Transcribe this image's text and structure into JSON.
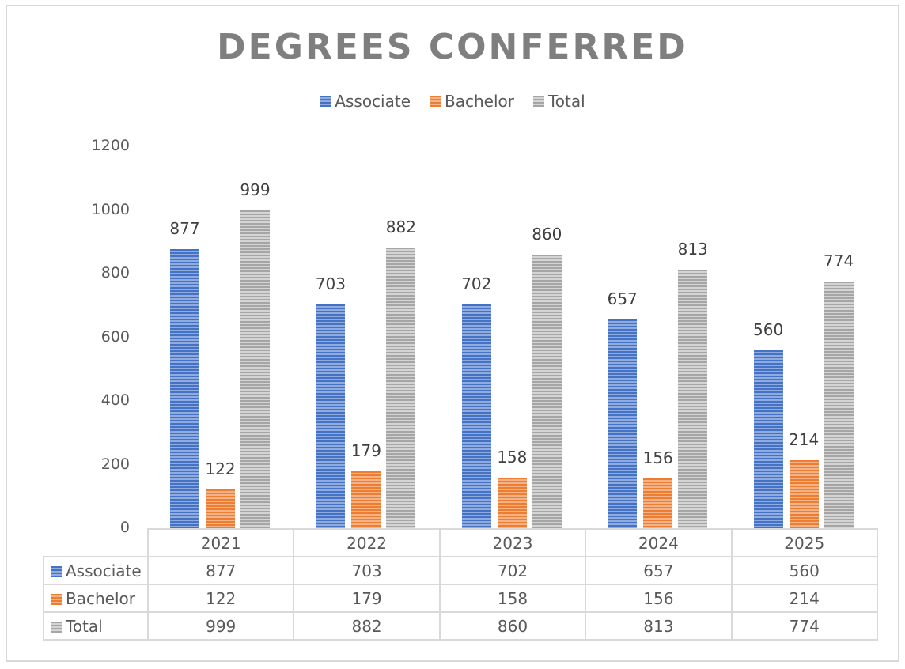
{
  "chart_data": {
    "type": "bar",
    "title": "DEGREES CONFERRED",
    "categories": [
      "2021",
      "2022",
      "2023",
      "2024",
      "2025"
    ],
    "series": [
      {
        "name": "Associate",
        "color": "#4472C4",
        "values": [
          877,
          703,
          702,
          657,
          560
        ]
      },
      {
        "name": "Bachelor",
        "color": "#ED7D31",
        "values": [
          122,
          179,
          158,
          156,
          214
        ]
      },
      {
        "name": "Total",
        "color": "#A5A5A5",
        "values": [
          999,
          882,
          860,
          813,
          774
        ]
      }
    ],
    "xlabel": "",
    "ylabel": "",
    "ylim": [
      0,
      1200
    ],
    "yticks": [
      "0",
      "200",
      "400",
      "600",
      "800",
      "1000",
      "1200"
    ],
    "grid": false,
    "legend_position": "top",
    "data_labels": true,
    "data_table": true
  },
  "legend": [
    {
      "label": "Associate",
      "color": "#4472C4"
    },
    {
      "label": "Bachelor",
      "color": "#ED7D31"
    },
    {
      "label": "Total",
      "color": "#A5A5A5"
    }
  ]
}
